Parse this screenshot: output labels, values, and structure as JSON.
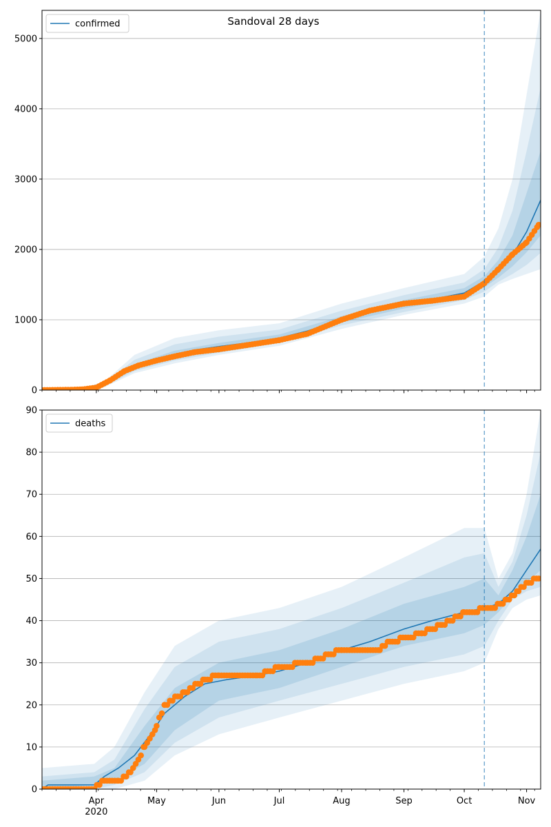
{
  "figure": {
    "title": "Sandoval 28 days",
    "month_labels": [
      "Apr",
      "May",
      "Jun",
      "Jul",
      "Aug",
      "Sep",
      "Oct",
      "Nov"
    ],
    "year_label": "2020"
  },
  "chart_data": [
    {
      "type": "line",
      "title": "Sandoval 28 days",
      "legend": [
        "confirmed"
      ],
      "legend_position": "top-left",
      "grid": "y",
      "xlim": [
        "2020-03-05",
        "2020-11-08"
      ],
      "ylim": [
        0,
        5400
      ],
      "yticks": [
        0,
        1000,
        2000,
        3000,
        4000,
        5000
      ],
      "forecast_start": "2020-10-11",
      "series": [
        {
          "name": "confirmed",
          "kind": "model",
          "color": "#1f77b4",
          "x": [
            "2020-03-05",
            "2020-03-20",
            "2020-03-25",
            "2020-04-01",
            "2020-04-08",
            "2020-04-15",
            "2020-04-22",
            "2020-05-01",
            "2020-05-10",
            "2020-05-20",
            "2020-06-01",
            "2020-06-15",
            "2020-07-01",
            "2020-07-15",
            "2020-08-01",
            "2020-08-15",
            "2020-09-01",
            "2020-09-15",
            "2020-10-01",
            "2020-10-11",
            "2020-10-18",
            "2020-10-25",
            "2020-11-01",
            "2020-11-08"
          ],
          "y": [
            0,
            5,
            15,
            40,
            150,
            280,
            360,
            450,
            510,
            570,
            620,
            670,
            740,
            840,
            1000,
            1130,
            1230,
            1290,
            1380,
            1550,
            1700,
            1920,
            2250,
            2700
          ]
        },
        {
          "name": "observed",
          "kind": "points",
          "color": "#ff7f0e",
          "x": [
            "2020-03-05",
            "2020-03-20",
            "2020-03-25",
            "2020-04-01",
            "2020-04-08",
            "2020-04-15",
            "2020-04-22",
            "2020-05-01",
            "2020-05-10",
            "2020-05-20",
            "2020-06-01",
            "2020-06-15",
            "2020-07-01",
            "2020-07-15",
            "2020-08-01",
            "2020-08-15",
            "2020-09-01",
            "2020-09-15",
            "2020-10-01",
            "2020-10-11",
            "2020-10-18",
            "2020-10-25",
            "2020-11-01",
            "2020-11-07"
          ],
          "y": [
            0,
            5,
            10,
            35,
            140,
            270,
            350,
            420,
            480,
            540,
            580,
            640,
            710,
            800,
            1000,
            1130,
            1230,
            1270,
            1330,
            1520,
            1720,
            1930,
            2100,
            2350
          ]
        }
      ],
      "bands": {
        "x": [
          "2020-03-05",
          "2020-03-25",
          "2020-04-05",
          "2020-04-20",
          "2020-05-10",
          "2020-06-01",
          "2020-07-01",
          "2020-08-01",
          "2020-09-01",
          "2020-10-01",
          "2020-10-11",
          "2020-10-18",
          "2020-10-25",
          "2020-11-01",
          "2020-11-08"
        ],
        "outer": {
          "lower": [
            0,
            5,
            40,
            240,
            380,
            500,
            630,
            870,
            1070,
            1230,
            1330,
            1500,
            1580,
            1650,
            1720
          ],
          "upper": [
            0,
            30,
            120,
            500,
            740,
            850,
            950,
            1230,
            1450,
            1650,
            1900,
            2300,
            3000,
            4200,
            5400
          ]
        },
        "inner": {
          "lower": [
            0,
            8,
            50,
            270,
            420,
            530,
            670,
            920,
            1110,
            1280,
            1400,
            1540,
            1650,
            1780,
            1950
          ],
          "upper": [
            0,
            22,
            100,
            430,
            650,
            760,
            860,
            1130,
            1350,
            1530,
            1720,
            2030,
            2550,
            3400,
            4300
          ]
        },
        "core": {
          "lower": [
            0,
            10,
            60,
            300,
            460,
            570,
            700,
            960,
            1160,
            1330,
            1460,
            1600,
            1760,
            1960,
            2200
          ],
          "upper": [
            0,
            18,
            80,
            370,
            560,
            670,
            790,
            1050,
            1280,
            1450,
            1620,
            1850,
            2200,
            2800,
            3400
          ]
        }
      }
    },
    {
      "type": "line",
      "legend": [
        "deaths"
      ],
      "legend_position": "top-left",
      "grid": "y",
      "xlim": [
        "2020-03-05",
        "2020-11-08"
      ],
      "ylim": [
        0,
        90
      ],
      "yticks": [
        0,
        10,
        20,
        30,
        40,
        50,
        60,
        70,
        80,
        90
      ],
      "forecast_start": "2020-10-11",
      "series": [
        {
          "name": "deaths",
          "kind": "model",
          "color": "#1f77b4",
          "x": [
            "2020-03-05",
            "2020-03-08",
            "2020-03-31",
            "2020-04-05",
            "2020-04-12",
            "2020-04-20",
            "2020-04-28",
            "2020-05-05",
            "2020-05-15",
            "2020-05-25",
            "2020-06-05",
            "2020-06-20",
            "2020-07-01",
            "2020-07-15",
            "2020-08-01",
            "2020-08-15",
            "2020-09-01",
            "2020-09-15",
            "2020-10-01",
            "2020-10-11",
            "2020-10-18",
            "2020-10-25",
            "2020-11-01",
            "2020-11-08"
          ],
          "y": [
            0,
            1,
            1,
            3,
            5,
            8,
            13,
            18,
            22,
            25,
            26,
            27,
            28,
            30,
            33,
            35,
            38,
            40,
            42,
            43,
            44,
            47,
            52,
            57
          ]
        },
        {
          "name": "observed",
          "kind": "points",
          "color": "#ff7f0e",
          "x": [
            "2020-03-05",
            "2020-03-31",
            "2020-04-05",
            "2020-04-12",
            "2020-04-18",
            "2020-04-25",
            "2020-05-01",
            "2020-05-05",
            "2020-05-15",
            "2020-05-25",
            "2020-06-01",
            "2020-06-20",
            "2020-07-01",
            "2020-07-15",
            "2020-08-01",
            "2020-08-20",
            "2020-08-25",
            "2020-09-10",
            "2020-09-20",
            "2020-10-01",
            "2020-10-15",
            "2020-10-22",
            "2020-10-28",
            "2020-11-02",
            "2020-11-07"
          ],
          "y": [
            0,
            0,
            2,
            2,
            4,
            10,
            15,
            20,
            23,
            26,
            27,
            27,
            29,
            30,
            33,
            33,
            35,
            37,
            39,
            42,
            43,
            45,
            47,
            49,
            50
          ]
        }
      ],
      "bands": {
        "x": [
          "2020-03-05",
          "2020-03-31",
          "2020-04-10",
          "2020-04-25",
          "2020-05-10",
          "2020-06-01",
          "2020-07-01",
          "2020-08-01",
          "2020-09-01",
          "2020-10-01",
          "2020-10-11",
          "2020-10-18",
          "2020-10-25",
          "2020-11-01",
          "2020-11-08"
        ],
        "outer": {
          "lower": [
            0,
            0,
            0,
            2,
            8,
            13,
            17,
            21,
            25,
            28,
            30,
            38,
            43,
            45,
            46
          ],
          "upper": [
            5,
            6,
            10,
            23,
            34,
            40,
            43,
            48,
            55,
            62,
            62,
            50,
            56,
            70,
            90
          ]
        },
        "inner": {
          "lower": [
            0,
            0,
            1,
            4,
            11,
            17,
            21,
            25,
            29,
            32,
            34,
            40,
            45,
            47,
            48
          ],
          "upper": [
            3,
            4,
            7,
            19,
            29,
            35,
            38,
            43,
            49,
            55,
            56,
            48,
            54,
            65,
            80
          ]
        },
        "core": {
          "lower": [
            0,
            1,
            2,
            6,
            14,
            21,
            24,
            29,
            34,
            37,
            39,
            42,
            46,
            49,
            52
          ],
          "upper": [
            2,
            3,
            5,
            15,
            24,
            30,
            33,
            38,
            44,
            48,
            50,
            46,
            52,
            60,
            70
          ]
        }
      }
    }
  ]
}
